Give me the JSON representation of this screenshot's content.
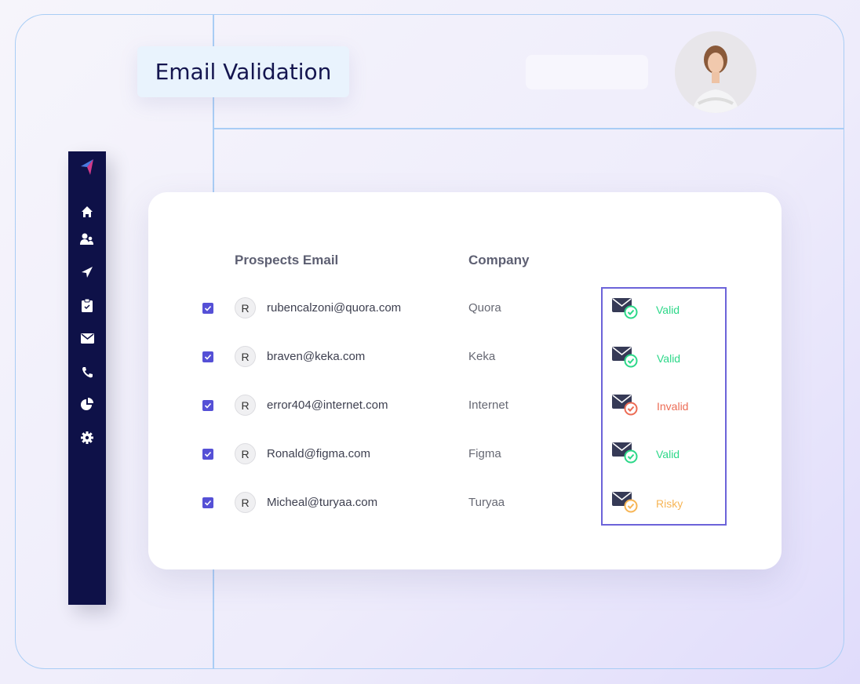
{
  "header": {
    "title": "Email Validation"
  },
  "sidebar": {
    "items": [
      {
        "icon": "logo-icon"
      },
      {
        "icon": "home-icon"
      },
      {
        "icon": "users-icon"
      },
      {
        "icon": "send-icon"
      },
      {
        "icon": "clipboard-check-icon"
      },
      {
        "icon": "mail-icon"
      },
      {
        "icon": "phone-icon"
      },
      {
        "icon": "pie-chart-icon"
      },
      {
        "icon": "gear-icon"
      }
    ]
  },
  "table": {
    "headers": [
      "Prospects Email",
      "Company"
    ],
    "rows": [
      {
        "avatar": "R",
        "email": "rubencalzoni@quora.com",
        "company": "Quora",
        "status": "Valid",
        "checked": true
      },
      {
        "avatar": "R",
        "email": "braven@keka.com",
        "company": "Keka",
        "status": "Valid",
        "checked": true
      },
      {
        "avatar": "R",
        "email": "error404@internet.com",
        "company": "Internet",
        "status": "Invalid",
        "checked": true
      },
      {
        "avatar": "R",
        "email": "Ronald@figma.com",
        "company": "Figma",
        "status": "Valid",
        "checked": true
      },
      {
        "avatar": "R",
        "email": "Micheal@turyaa.com",
        "company": "Turyaa",
        "status": "Risky",
        "checked": true
      }
    ]
  },
  "colors": {
    "Valid": "#2dd889",
    "Invalid": "#ec6c55",
    "Risky": "#f7b555",
    "accent": "#5550d6",
    "sidebar": "#0e1148"
  }
}
